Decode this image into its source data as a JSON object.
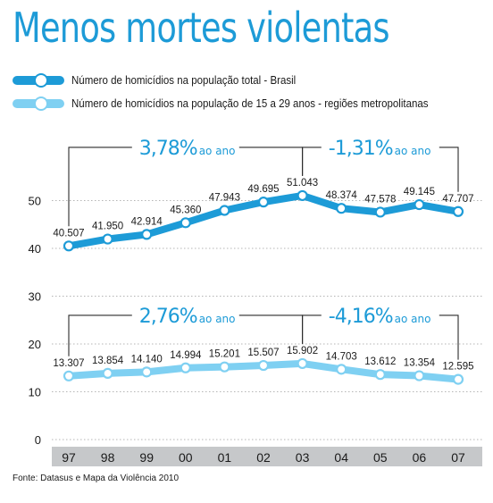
{
  "title": "Menos mortes violentas",
  "legend": [
    {
      "label": "Número de homicídios na população total - Brasil",
      "color": "#1d9bd7"
    },
    {
      "label": "Número de homicídios na população de 15 a 29 anos - regiões metropolitanas",
      "color": "#7fd0f2"
    }
  ],
  "source": "Fonte: Datasus e Mapa da Violência 2010",
  "colors": {
    "dark_series": "#1d9bd7",
    "light_series": "#7fd0f2",
    "axis_band": "#c6c8ca",
    "grid": "#b5b5b5"
  },
  "chart_data": {
    "type": "line",
    "categories": [
      "97",
      "98",
      "99",
      "00",
      "01",
      "02",
      "03",
      "04",
      "05",
      "06",
      "07"
    ],
    "y_ticks": [
      "0",
      "10",
      "20",
      "30",
      "40",
      "50"
    ],
    "ylim": [
      0,
      55
    ],
    "series": [
      {
        "name": "Número de homicídios na população total - Brasil",
        "values": [
          40.507,
          41.95,
          42.914,
          45.36,
          47.943,
          49.695,
          51.043,
          48.374,
          47.578,
          49.145,
          47.707
        ],
        "labels": [
          "40.507",
          "41.950",
          "42.914",
          "45.360",
          "47.943",
          "49.695",
          "51.043",
          "48.374",
          "47.578",
          "49.145",
          "47.707"
        ],
        "color": "#1d9bd7"
      },
      {
        "name": "Número de homicídios na população de 15 a 29 anos - regiões metropolitanas",
        "values": [
          13.307,
          13.854,
          14.14,
          14.994,
          15.201,
          15.507,
          15.902,
          14.703,
          13.612,
          13.354,
          12.595
        ],
        "labels": [
          "13.307",
          "13.854",
          "14.140",
          "14.994",
          "15.201",
          "15.507",
          "15.902",
          "14.703",
          "13.612",
          "13.354",
          "12.595"
        ],
        "color": "#7fd0f2"
      }
    ],
    "annotations": [
      {
        "series": 0,
        "from": "97",
        "to": "03",
        "pct": "3,78%",
        "suffix": "ao ano"
      },
      {
        "series": 0,
        "from": "03",
        "to": "07",
        "pct": "-1,31%",
        "suffix": "ao ano"
      },
      {
        "series": 1,
        "from": "97",
        "to": "03",
        "pct": "2,76%",
        "suffix": "ao ano"
      },
      {
        "series": 1,
        "from": "03",
        "to": "07",
        "pct": "-4,16%",
        "suffix": "ao ano"
      }
    ]
  }
}
